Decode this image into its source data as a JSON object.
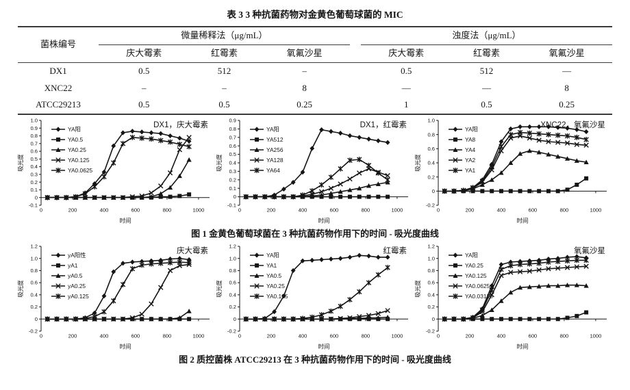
{
  "page": {
    "table_title": "表 3  3 种抗菌药物对金黄色葡萄球菌的 MIC",
    "figure1_caption": "图 1  金黄色葡萄球菌在 3 种抗菌药物作用下的时间 - 吸光度曲线",
    "figure2_caption": "图 2  质控菌株 ATCC29213 在 3 种抗菌药物作用下的时间 - 吸光度曲线"
  },
  "table": {
    "strain_header": "菌株编号",
    "group_headers": [
      "微量稀释法（μg/mL）",
      "浊度法（μg/mL）"
    ],
    "drug_headers": [
      "庆大霉素",
      "红霉素",
      "氧氟沙星",
      "庆大霉素",
      "红霉素",
      "氧氟沙星"
    ],
    "rows": [
      {
        "strain": "DX1",
        "values": [
          "0.5",
          "512",
          "–",
          "0.5",
          "512",
          "—"
        ]
      },
      {
        "strain": "XNC22",
        "values": [
          "–",
          "–",
          "8",
          "—",
          "—",
          "8"
        ]
      },
      {
        "strain": "ATCC29213",
        "values": [
          "0.5",
          "0.5",
          "0.25",
          "1",
          "0.5",
          "0.25"
        ]
      }
    ]
  },
  "chart_data": [
    {
      "type": "line",
      "title": "DX1，庆大霉素",
      "xlabel": "时间",
      "ylabel": "吸光度",
      "xlim": [
        0,
        1070
      ],
      "xticks": [
        0,
        200,
        400,
        600,
        800,
        1000
      ],
      "ylim": [
        -0.1,
        1.0
      ],
      "ytick_step": 0.1,
      "grid": false,
      "legend_position": "upper-left",
      "x": [
        40,
        100,
        160,
        220,
        280,
        340,
        400,
        460,
        520,
        580,
        640,
        700,
        760,
        820,
        880,
        940
      ],
      "series": [
        {
          "name": "YA阳",
          "marker": "diamond",
          "values": [
            0,
            0,
            0,
            0.01,
            0.06,
            0.18,
            0.33,
            0.67,
            0.84,
            0.86,
            0.85,
            0.84,
            0.83,
            0.8,
            0.77,
            0.73
          ]
        },
        {
          "name": "YA0.5",
          "marker": "square",
          "values": [
            0,
            0,
            0,
            0,
            0,
            0,
            0,
            0,
            0,
            0,
            0,
            0,
            0.01,
            0.01,
            0.02,
            0.04
          ]
        },
        {
          "name": "YA0.25",
          "marker": "triangle",
          "values": [
            0,
            0,
            0,
            0,
            0,
            0,
            0,
            0,
            0,
            0,
            0,
            0.01,
            0.05,
            0.13,
            0.28,
            0.49
          ]
        },
        {
          "name": "YA0.125",
          "marker": "x",
          "values": [
            0,
            0,
            0,
            0,
            0,
            0,
            0,
            0,
            0,
            0.01,
            0.02,
            0.06,
            0.15,
            0.32,
            0.62,
            0.78
          ]
        },
        {
          "name": "YA0.0625",
          "marker": "asterisk",
          "values": [
            0,
            0,
            0,
            0.01,
            0.05,
            0.14,
            0.27,
            0.45,
            0.7,
            0.78,
            0.77,
            0.76,
            0.74,
            0.72,
            0.69,
            0.66
          ]
        }
      ]
    },
    {
      "type": "line",
      "title": "DX1，红霉素",
      "xlabel": "时间",
      "ylabel": "吸光度",
      "xlim": [
        0,
        1070
      ],
      "xticks": [
        0,
        200,
        400,
        600,
        800,
        1000
      ],
      "ylim": [
        -0.1,
        0.9
      ],
      "ytick_step": 0.1,
      "grid": false,
      "legend_position": "upper-left",
      "x": [
        40,
        100,
        160,
        220,
        280,
        340,
        400,
        460,
        520,
        580,
        640,
        700,
        760,
        820,
        880,
        940
      ],
      "series": [
        {
          "name": "YA阳",
          "marker": "diamond",
          "values": [
            0,
            0,
            0,
            0.02,
            0.09,
            0.17,
            0.29,
            0.57,
            0.79,
            0.77,
            0.75,
            0.72,
            0.7,
            0.68,
            0.66,
            0.64
          ]
        },
        {
          "name": "YA512",
          "marker": "square",
          "values": [
            0,
            0,
            0,
            0,
            0,
            0,
            0,
            0,
            0,
            0,
            0,
            0,
            0,
            0,
            0,
            0
          ]
        },
        {
          "name": "YA256",
          "marker": "triangle",
          "values": [
            0,
            0,
            0,
            0,
            0,
            0,
            0,
            0.01,
            0.02,
            0.04,
            0.06,
            0.08,
            0.1,
            0.13,
            0.15,
            0.17
          ]
        },
        {
          "name": "YA128",
          "marker": "x",
          "values": [
            0,
            0,
            0,
            0,
            0,
            0,
            0.01,
            0.03,
            0.06,
            0.1,
            0.15,
            0.21,
            0.28,
            0.33,
            0.29,
            0.25
          ]
        },
        {
          "name": "YA64",
          "marker": "asterisk",
          "values": [
            0,
            0,
            0,
            0,
            0,
            0,
            0.02,
            0.07,
            0.14,
            0.23,
            0.33,
            0.43,
            0.44,
            0.37,
            0.28,
            0.2
          ]
        }
      ]
    },
    {
      "type": "line",
      "title": "XNC22，氧氟沙星",
      "xlabel": "时间",
      "ylabel": "吸光度",
      "xlim": [
        0,
        1070
      ],
      "xticks": [
        0,
        200,
        400,
        600,
        800,
        1000
      ],
      "ylim": [
        -0.2,
        1.0
      ],
      "ytick_step": 0.2,
      "grid": false,
      "legend_position": "upper-left",
      "x": [
        40,
        100,
        160,
        220,
        280,
        340,
        400,
        460,
        520,
        580,
        640,
        700,
        760,
        820,
        880,
        940
      ],
      "series": [
        {
          "name": "YA阳",
          "marker": "diamond",
          "values": [
            0,
            0,
            0.01,
            0.05,
            0.16,
            0.38,
            0.7,
            0.88,
            0.91,
            0.91,
            0.91,
            0.91,
            0.9,
            0.89,
            0.87,
            0.84
          ]
        },
        {
          "name": "YA8",
          "marker": "square",
          "values": [
            0,
            0,
            0,
            0,
            0,
            0,
            0,
            0,
            0,
            0,
            0,
            0,
            0,
            0.02,
            0.09,
            0.18
          ]
        },
        {
          "name": "YA4",
          "marker": "triangle",
          "values": [
            0,
            0,
            0.01,
            0.03,
            0.09,
            0.16,
            0.26,
            0.4,
            0.53,
            0.57,
            0.55,
            0.52,
            0.49,
            0.46,
            0.43,
            0.41
          ]
        },
        {
          "name": "YA2",
          "marker": "x",
          "values": [
            0,
            0,
            0.01,
            0.04,
            0.13,
            0.3,
            0.57,
            0.75,
            0.78,
            0.75,
            0.72,
            0.7,
            0.69,
            0.68,
            0.66,
            0.65
          ]
        },
        {
          "name": "YA1",
          "marker": "asterisk",
          "values": [
            0,
            0,
            0.01,
            0.05,
            0.14,
            0.34,
            0.63,
            0.8,
            0.83,
            0.82,
            0.81,
            0.8,
            0.79,
            0.78,
            0.76,
            0.73
          ]
        }
      ]
    },
    {
      "type": "line",
      "title": "庆大霉素",
      "xlabel": "时间",
      "ylabel": "吸光度",
      "xlim": [
        0,
        1070
      ],
      "xticks": [
        0,
        200,
        400,
        600,
        800,
        1000
      ],
      "ylim": [
        -0.2,
        1.2
      ],
      "ytick_step": 0.2,
      "grid": false,
      "legend_position": "upper-left",
      "x": [
        40,
        100,
        160,
        220,
        280,
        340,
        400,
        460,
        520,
        580,
        640,
        700,
        760,
        820,
        880,
        940
      ],
      "series": [
        {
          "name": "yA阳性",
          "marker": "diamond",
          "values": [
            0,
            0,
            0,
            0,
            0.02,
            0.1,
            0.38,
            0.78,
            0.92,
            0.94,
            0.95,
            0.96,
            0.97,
            0.99,
            1.0,
            0.98
          ]
        },
        {
          "name": "yA1",
          "marker": "square",
          "values": [
            0,
            0,
            0,
            0,
            0,
            0,
            0,
            0,
            0,
            0,
            0,
            0,
            0,
            0,
            0,
            0
          ]
        },
        {
          "name": "yA0.5",
          "marker": "triangle",
          "values": [
            0,
            0,
            0,
            0,
            0,
            0,
            0,
            0,
            0,
            0,
            0,
            0,
            0,
            0,
            0.02,
            0.13
          ]
        },
        {
          "name": "yA0.25",
          "marker": "x",
          "values": [
            0,
            0,
            0,
            0,
            0,
            0,
            0,
            0,
            0,
            0.02,
            0.08,
            0.25,
            0.52,
            0.8,
            0.88,
            0.9
          ]
        },
        {
          "name": "yA0.125",
          "marker": "asterisk",
          "values": [
            0,
            0,
            0,
            0,
            0.01,
            0.04,
            0.12,
            0.3,
            0.57,
            0.83,
            0.89,
            0.91,
            0.92,
            0.93,
            0.94,
            0.93
          ]
        }
      ]
    },
    {
      "type": "line",
      "title": "红霉素",
      "xlabel": "时间",
      "ylabel": "吸光度",
      "xlim": [
        0,
        1070
      ],
      "xticks": [
        0,
        200,
        400,
        600,
        800,
        1000
      ],
      "ylim": [
        -0.2,
        1.2
      ],
      "ytick_step": 0.2,
      "grid": false,
      "legend_position": "upper-left",
      "x": [
        40,
        100,
        160,
        220,
        280,
        340,
        400,
        460,
        520,
        580,
        640,
        700,
        760,
        820,
        880,
        940
      ],
      "series": [
        {
          "name": "YA阳",
          "marker": "diamond",
          "values": [
            0,
            0,
            0.01,
            0.12,
            0.38,
            0.8,
            0.96,
            0.97,
            0.98,
            0.99,
            1.0,
            1.02,
            1.05,
            1.04,
            1.02,
            1.02
          ]
        },
        {
          "name": "YA1",
          "marker": "square",
          "values": [
            0,
            0,
            0,
            0,
            0,
            0,
            0,
            0,
            0,
            0,
            0,
            0,
            0,
            0,
            0,
            0
          ]
        },
        {
          "name": "YA0.5",
          "marker": "triangle",
          "values": [
            0,
            0,
            0,
            0,
            0,
            0,
            0,
            0,
            0,
            0,
            0,
            0.01,
            0.01,
            0.02,
            0.02,
            0.03
          ]
        },
        {
          "name": "YA0.25",
          "marker": "x",
          "values": [
            0,
            0,
            0,
            0,
            0,
            0,
            0,
            0,
            0,
            0,
            0.01,
            0.02,
            0.04,
            0.06,
            0.09,
            0.14
          ]
        },
        {
          "name": "YA0.125",
          "marker": "asterisk",
          "values": [
            0,
            0,
            0,
            0,
            0,
            0,
            0.01,
            0.03,
            0.07,
            0.13,
            0.21,
            0.32,
            0.45,
            0.6,
            0.73,
            0.85
          ]
        }
      ]
    },
    {
      "type": "line",
      "title": "氧氟沙星",
      "xlabel": "时间",
      "ylabel": "吸光度",
      "xlim": [
        0,
        1070
      ],
      "xticks": [
        0,
        200,
        400,
        600,
        800,
        1000
      ],
      "ylim": [
        -0.2,
        1.2
      ],
      "ytick_step": 0.2,
      "grid": false,
      "legend_position": "upper-left",
      "x": [
        40,
        100,
        160,
        220,
        280,
        340,
        400,
        460,
        520,
        580,
        640,
        700,
        760,
        820,
        880,
        940
      ],
      "series": [
        {
          "name": "YA阳",
          "marker": "diamond",
          "values": [
            0,
            0,
            0,
            0.03,
            0.17,
            0.55,
            0.9,
            0.94,
            0.95,
            0.96,
            0.97,
            0.99,
            1.0,
            1.02,
            1.03,
            1.01
          ]
        },
        {
          "name": "YA0.25",
          "marker": "square",
          "values": [
            0,
            0,
            0,
            0,
            0,
            0,
            0,
            0,
            0,
            0,
            0,
            0,
            0,
            0.02,
            0.05,
            0.11
          ]
        },
        {
          "name": "YA0.125",
          "marker": "triangle",
          "values": [
            0,
            0,
            0,
            0.01,
            0.06,
            0.15,
            0.3,
            0.44,
            0.52,
            0.53,
            0.54,
            0.55,
            0.55,
            0.56,
            0.56,
            0.55
          ]
        },
        {
          "name": "YA0.0625",
          "marker": "x",
          "values": [
            0,
            0,
            0,
            0.02,
            0.12,
            0.4,
            0.72,
            0.77,
            0.78,
            0.79,
            0.81,
            0.83,
            0.84,
            0.85,
            0.86,
            0.87
          ]
        },
        {
          "name": "YA0.03125",
          "marker": "asterisk",
          "values": [
            0,
            0,
            0,
            0.02,
            0.15,
            0.48,
            0.82,
            0.88,
            0.9,
            0.91,
            0.92,
            0.94,
            0.95,
            0.96,
            0.97,
            0.97
          ]
        }
      ]
    }
  ]
}
